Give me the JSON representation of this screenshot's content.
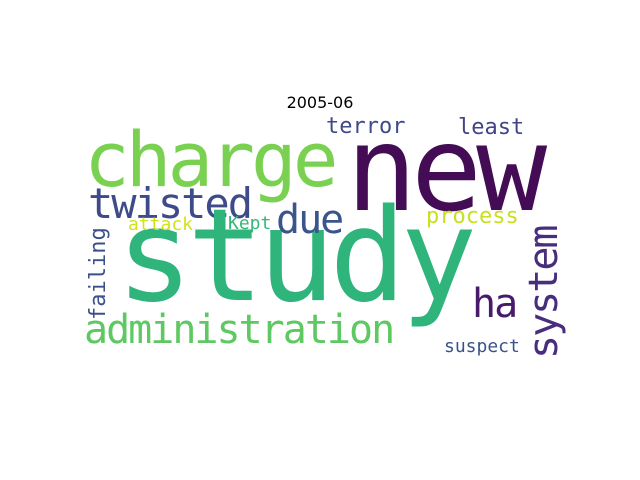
{
  "title": "2005-06",
  "words": {
    "new": {
      "text": "new",
      "color": "#440c54"
    },
    "charge": {
      "text": "charge",
      "color": "#7ad151"
    },
    "study": {
      "text": "study",
      "color": "#2fb47c"
    },
    "twisted": {
      "text": "twisted",
      "color": "#3e4a89"
    },
    "due": {
      "text": "due",
      "color": "#3a548c"
    },
    "terror": {
      "text": "terror",
      "color": "#3e4b8a"
    },
    "least": {
      "text": "least",
      "color": "#414487"
    },
    "process": {
      "text": "process",
      "color": "#c8e020"
    },
    "attack": {
      "text": "attack",
      "color": "#d2e21b"
    },
    "kept": {
      "text": "Kept",
      "color": "#35b779"
    },
    "administration": {
      "text": "administration",
      "color": "#5ec962"
    },
    "ha": {
      "text": "ha",
      "color": "#481a6c"
    },
    "suspect": {
      "text": "suspect",
      "color": "#3b528b"
    },
    "system": {
      "text": "system",
      "color": "#472d7b"
    },
    "failing": {
      "text": "failing",
      "color": "#3b518b"
    }
  }
}
